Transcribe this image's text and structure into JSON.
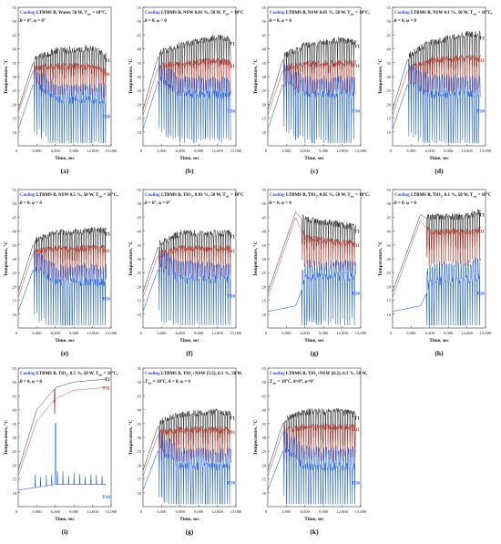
{
  "figure": {
    "xlabel": "Time, sec",
    "ylabel": "Temperature, °C",
    "xticks": [
      "3,000",
      "6,000",
      "9,000",
      "12,000",
      "15,000"
    ],
    "yticks": [
      "10",
      "15",
      "20",
      "25",
      "30",
      "35",
      "40",
      "45",
      "50",
      "55"
    ],
    "colors": {
      "T1": "#222222",
      "T11": "#c0392b",
      "T16": "#1f5fd6",
      "cooling": "#3a4fd0"
    }
  },
  "chart_data": [
    {
      "type": "line",
      "caption": "(a)",
      "cooling": "Cooling",
      "title": "LTBMS B, Water, 50 W, T",
      "title_sub": "air",
      "title_end": " = 10°C,",
      "subtitle": "θ = 0°, φ = 0°",
      "xlim": [
        0,
        15000
      ],
      "ylim": [
        5,
        55
      ],
      "pattern": "oscillating",
      "mid": 28,
      "band": 8,
      "series": [
        {
          "name": "T1",
          "values": [
            [
              0,
              18
            ],
            [
              2400,
              35
            ],
            [
              6000,
              38
            ],
            [
              12000,
              39
            ],
            [
              14200,
              36
            ]
          ]
        },
        {
          "name": "T11",
          "values": [
            [
              0,
              17
            ],
            [
              2400,
              32
            ],
            [
              6000,
              33
            ],
            [
              12000,
              33
            ],
            [
              14200,
              31
            ]
          ]
        },
        {
          "name": "T16",
          "values": [
            [
              0,
              11
            ],
            [
              2400,
              27
            ],
            [
              6000,
              20
            ],
            [
              12000,
              20
            ],
            [
              14200,
              20
            ]
          ]
        }
      ]
    },
    {
      "type": "line",
      "caption": "(b)",
      "cooling": "Cooling",
      "title": "LTBMS B, NSW 0.01 %, 50 W, T",
      "title_sub": "air",
      "title_end": " = 10°C",
      "subtitle": "θ = 0, φ = 0",
      "xlim": [
        0,
        15000
      ],
      "ylim": [
        5,
        55
      ],
      "pattern": "oscillating",
      "mid": 28,
      "band": 9,
      "series": [
        {
          "name": "T1",
          "values": [
            [
              0,
              18
            ],
            [
              2400,
              37
            ],
            [
              6000,
              40
            ],
            [
              12000,
              43
            ],
            [
              14200,
              42
            ]
          ]
        },
        {
          "name": "T11",
          "values": [
            [
              0,
              16
            ],
            [
              2400,
              33
            ],
            [
              6000,
              34
            ],
            [
              12000,
              35
            ],
            [
              14200,
              34
            ]
          ]
        },
        {
          "name": "T16",
          "values": [
            [
              0,
              11
            ],
            [
              2400,
              28
            ],
            [
              6000,
              22
            ],
            [
              12000,
              22
            ],
            [
              14200,
              22
            ]
          ]
        }
      ]
    },
    {
      "type": "line",
      "caption": "(c)",
      "cooling": "Cooling",
      "title": "LTBMS B, NSW 0.05 %, 50 W, T",
      "title_sub": "air",
      "title_end": " = 10°C,",
      "subtitle": "θ = 0, φ = 0",
      "xlim": [
        0,
        15000
      ],
      "ylim": [
        5,
        55
      ],
      "pattern": "oscillating",
      "mid": 28,
      "band": 9,
      "series": [
        {
          "name": "T1",
          "values": [
            [
              0,
              18
            ],
            [
              2400,
              36
            ],
            [
              6000,
              40
            ],
            [
              12000,
              42
            ],
            [
              14200,
              41
            ]
          ]
        },
        {
          "name": "T11",
          "values": [
            [
              0,
              16
            ],
            [
              2400,
              32
            ],
            [
              6000,
              34
            ],
            [
              12000,
              34
            ],
            [
              14200,
              34
            ]
          ]
        },
        {
          "name": "T16",
          "values": [
            [
              0,
              11
            ],
            [
              2400,
              27
            ],
            [
              6000,
              22
            ],
            [
              12000,
              22
            ],
            [
              14200,
              22
            ]
          ]
        }
      ]
    },
    {
      "type": "line",
      "caption": "(d)",
      "cooling": "Cooling",
      "title": "LTBMS B, NSW 0.1 %, 50 W, T",
      "title_sub": "air",
      "title_end": " = 10°C,",
      "subtitle": "θ = 0, φ = 0",
      "xlim": [
        0,
        15000
      ],
      "ylim": [
        5,
        55
      ],
      "pattern": "oscillating",
      "mid": 28,
      "band": 10,
      "series": [
        {
          "name": "T1",
          "values": [
            [
              0,
              18
            ],
            [
              2400,
              36
            ],
            [
              6000,
              41
            ],
            [
              12000,
              44
            ],
            [
              14200,
              44
            ]
          ]
        },
        {
          "name": "T11",
          "values": [
            [
              0,
              16
            ],
            [
              2400,
              32
            ],
            [
              6000,
              35
            ],
            [
              12000,
              36
            ],
            [
              14200,
              36
            ]
          ]
        },
        {
          "name": "T16",
          "values": [
            [
              0,
              11
            ],
            [
              2400,
              27
            ],
            [
              6000,
              22
            ],
            [
              12000,
              22
            ],
            [
              14200,
              22
            ]
          ]
        }
      ]
    },
    {
      "type": "line",
      "caption": "(e)",
      "cooling": "Cooling",
      "title": "LTBMS B, NSW 0.5 %, 50 W, T",
      "title_sub": "air",
      "title_end": " = 10°C,",
      "subtitle": "θ = 0, φ = 0",
      "xlim": [
        0,
        15000
      ],
      "ylim": [
        5,
        55
      ],
      "pattern": "oscillating",
      "mid": 28,
      "band": 9,
      "series": [
        {
          "name": "T1",
          "values": [
            [
              0,
              18
            ],
            [
              2400,
              35
            ],
            [
              6000,
              38
            ],
            [
              12000,
              39
            ],
            [
              14200,
              39
            ]
          ]
        },
        {
          "name": "T11",
          "values": [
            [
              0,
              16
            ],
            [
              2400,
              32
            ],
            [
              6000,
              33
            ],
            [
              12000,
              33
            ],
            [
              14200,
              33
            ]
          ]
        },
        {
          "name": "T16",
          "values": [
            [
              0,
              11
            ],
            [
              2400,
              26
            ],
            [
              6000,
              20
            ],
            [
              12000,
              20
            ],
            [
              14200,
              20
            ]
          ]
        }
      ]
    },
    {
      "type": "line",
      "caption": "(f)",
      "cooling": "Cooling",
      "title": "LTBMS B, TiO",
      "title_sub": "2",
      "title_end": ", 0.01 %, 50 W, T",
      "title_sub2": "air",
      "title_end2": " = 10°C",
      "subtitle": "θ = 0°, φ = 0°",
      "xlim": [
        0,
        15000
      ],
      "ylim": [
        5,
        55
      ],
      "pattern": "oscillating",
      "mid": 28,
      "band": 9,
      "series": [
        {
          "name": "T1",
          "values": [
            [
              0,
              18
            ],
            [
              2400,
              34
            ],
            [
              6000,
              38
            ],
            [
              12000,
              38
            ],
            [
              14200,
              38
            ]
          ]
        },
        {
          "name": "T11",
          "values": [
            [
              0,
              16
            ],
            [
              2400,
              31
            ],
            [
              6000,
              33
            ],
            [
              12000,
              33
            ],
            [
              14200,
              33
            ]
          ]
        },
        {
          "name": "T16",
          "values": [
            [
              0,
              11
            ],
            [
              2400,
              26
            ],
            [
              6000,
              21
            ],
            [
              12000,
              21
            ],
            [
              14200,
              21
            ]
          ]
        }
      ]
    },
    {
      "type": "line",
      "caption": "(g)",
      "cooling": "Cooling",
      "title": "LTBMS B, TiO",
      "title_sub": "2",
      "title_end": ", 0.05 %, 50 W, T",
      "title_sub2": "air",
      "title_end2": " = 10°C,",
      "subtitle": "θ = 0, φ = 0",
      "xlim": [
        0,
        15000
      ],
      "ylim": [
        5,
        55
      ],
      "pattern": "rise-then-oscillate",
      "mid": 30,
      "band": 8,
      "series": [
        {
          "name": "T1",
          "values": [
            [
              0,
              18
            ],
            [
              4500,
              47
            ],
            [
              6000,
              43
            ],
            [
              12000,
              41
            ],
            [
              14200,
              40
            ]
          ]
        },
        {
          "name": "T11",
          "values": [
            [
              0,
              16
            ],
            [
              4500,
              45
            ],
            [
              6000,
              37
            ],
            [
              12000,
              35
            ],
            [
              14200,
              35
            ]
          ]
        },
        {
          "name": "T16",
          "values": [
            [
              0,
              11
            ],
            [
              4500,
              13
            ],
            [
              6000,
              22
            ],
            [
              12000,
              22
            ],
            [
              14200,
              22
            ]
          ]
        }
      ]
    },
    {
      "type": "line",
      "caption": "(h)",
      "cooling": "Cooling",
      "title": "LTBMS B, TiO",
      "title_sub": "2",
      "title_end": ", 0.1 %, 50 W, T",
      "title_sub2": "air",
      "title_end2": " = 10°C",
      "subtitle": "θ = 0, φ = 0",
      "xlim": [
        0,
        15000
      ],
      "ylim": [
        5,
        55
      ],
      "pattern": "rise-then-oscillate",
      "mid": 30,
      "band": 10,
      "series": [
        {
          "name": "T1",
          "values": [
            [
              0,
              18
            ],
            [
              4500,
              46
            ],
            [
              6000,
              44
            ],
            [
              12000,
              44
            ],
            [
              14200,
              46
            ]
          ]
        },
        {
          "name": "T11",
          "values": [
            [
              0,
              16
            ],
            [
              4500,
              44
            ],
            [
              6000,
              39
            ],
            [
              12000,
              39
            ],
            [
              14200,
              40
            ]
          ]
        },
        {
          "name": "T16",
          "values": [
            [
              0,
              11
            ],
            [
              4500,
              13
            ],
            [
              6000,
              20
            ],
            [
              12000,
              21
            ],
            [
              14200,
              22
            ]
          ]
        }
      ]
    },
    {
      "type": "line",
      "caption": "(i)",
      "cooling": "Cooling",
      "title": "LTBMS B, TiO",
      "title_sub": "2",
      "title_end": ", 0.5 %, 50 W, T",
      "title_sub2": "air",
      "title_end2": " = 10°C,",
      "subtitle": "θ = 0, φ = 0",
      "xlim": [
        0,
        15000
      ],
      "ylim": [
        5,
        55
      ],
      "pattern": "saturating",
      "mid": 0,
      "band": 0,
      "series": [
        {
          "name": "T1",
          "values": [
            [
              0,
              18
            ],
            [
              3000,
              40
            ],
            [
              6000,
              48
            ],
            [
              9000,
              50
            ],
            [
              14200,
              51
            ]
          ]
        },
        {
          "name": "T11",
          "values": [
            [
              0,
              16
            ],
            [
              3000,
              36
            ],
            [
              6000,
              44
            ],
            [
              9000,
              47
            ],
            [
              14200,
              48
            ]
          ]
        },
        {
          "name": "T16",
          "values": [
            [
              0,
              11
            ],
            [
              3000,
              12
            ],
            [
              6000,
              13
            ],
            [
              9000,
              13
            ],
            [
              14200,
              13
            ]
          ]
        }
      ]
    },
    {
      "type": "line",
      "caption": "(g)",
      "cooling": "Cooling",
      "title": "LTBMS B, TiO",
      "title_sub": "2",
      "title_end": "+NSW (5:5), 0.1 %, 50 W,",
      "line2_pre": "T",
      "line2_sub": "air",
      "line2_end": " = 10°C, θ = 0, φ = 0",
      "xlim": [
        0,
        15000
      ],
      "ylim": [
        5,
        55
      ],
      "pattern": "oscillating",
      "mid": 26,
      "band": 9,
      "series": [
        {
          "name": "T1",
          "values": [
            [
              0,
              18
            ],
            [
              2400,
              34
            ],
            [
              6000,
              37
            ],
            [
              12000,
              38
            ],
            [
              14200,
              37
            ]
          ]
        },
        {
          "name": "T11",
          "values": [
            [
              0,
              16
            ],
            [
              2400,
              31
            ],
            [
              6000,
              32
            ],
            [
              12000,
              32
            ],
            [
              14200,
              32
            ]
          ]
        },
        {
          "name": "T16",
          "values": [
            [
              0,
              11
            ],
            [
              2400,
              25
            ],
            [
              6000,
              18
            ],
            [
              12000,
              18
            ],
            [
              14200,
              18
            ]
          ]
        }
      ]
    },
    {
      "type": "line",
      "caption": "(k)",
      "cooling": "Cooling",
      "title": "LTBMS B, TiO",
      "title_sub": "2",
      "title_end": "+NSW (8:2), 0.1 %, 50 W,",
      "line2_pre": "T",
      "line2_sub": "air",
      "line2_end": " = 10°C, θ=0°, φ=0°",
      "xlim": [
        0,
        15000
      ],
      "ylim": [
        5,
        55
      ],
      "pattern": "oscillating",
      "mid": 27,
      "band": 10,
      "series": [
        {
          "name": "T1",
          "values": [
            [
              0,
              18
            ],
            [
              2400,
              35
            ],
            [
              6000,
              38
            ],
            [
              12000,
              38
            ],
            [
              14200,
              37
            ]
          ]
        },
        {
          "name": "T11",
          "values": [
            [
              0,
              16
            ],
            [
              2400,
              32
            ],
            [
              6000,
              33
            ],
            [
              12000,
              33
            ],
            [
              14200,
              33
            ]
          ]
        },
        {
          "name": "T16",
          "values": [
            [
              0,
              11
            ],
            [
              2400,
              25
            ],
            [
              6000,
              18
            ],
            [
              12000,
              18
            ],
            [
              14200,
              18
            ]
          ]
        }
      ]
    }
  ]
}
